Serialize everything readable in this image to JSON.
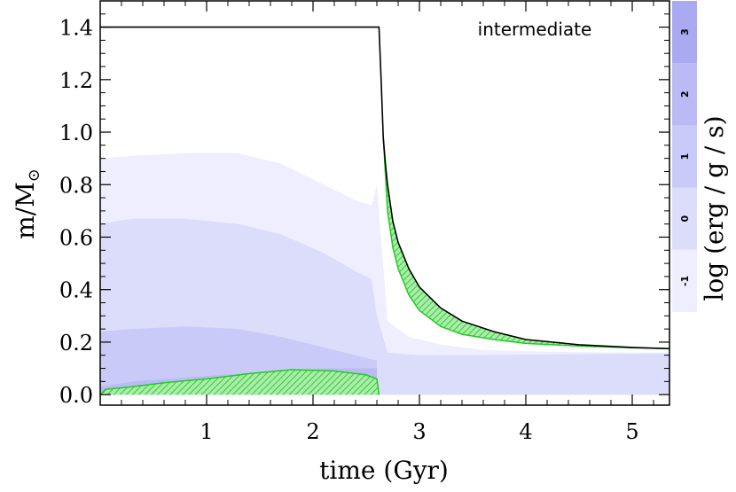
{
  "chart_data": {
    "type": "area",
    "annotation": "intermediate",
    "xlabel": "time  (Gyr)",
    "ylabel_main": "m/M",
    "ylabel_sub": "⊙",
    "xlim": [
      0.0,
      5.35
    ],
    "ylim": [
      -0.04,
      1.5
    ],
    "x_ticks": [
      1,
      2,
      3,
      4,
      5
    ],
    "x_tick_labels": [
      "1",
      "2",
      "3",
      "4",
      "5"
    ],
    "y_ticks": [
      0.0,
      0.2,
      0.4,
      0.6,
      0.8,
      1.0,
      1.2,
      1.4
    ],
    "y_tick_labels": [
      "0.0",
      "0.2",
      "0.4",
      "0.6",
      "0.8",
      "1.0",
      "1.2",
      "1.4"
    ],
    "colorbar": {
      "title": "log  (erg / g / s)",
      "levels": [
        "-1",
        "0",
        "1",
        "2",
        "3"
      ],
      "colors": [
        "#eeeeff",
        "#dcdcfb",
        "#cacaf8",
        "#babaf5",
        "#aaaaf2"
      ]
    },
    "series": [
      {
        "kind": "total_mass",
        "color": "#000000",
        "x": [
          0.0,
          2.62,
          2.64,
          2.66,
          2.68,
          2.7,
          2.75,
          2.8,
          2.9,
          3.0,
          3.2,
          3.4,
          3.7,
          4.0,
          4.5,
          5.0,
          5.35
        ],
        "y": [
          1.4,
          1.4,
          1.2,
          0.98,
          0.88,
          0.8,
          0.66,
          0.58,
          0.48,
          0.41,
          0.33,
          0.28,
          0.24,
          0.21,
          0.19,
          0.18,
          0.175
        ]
      },
      {
        "kind": "convective_envelope_base",
        "color": "#22cc22",
        "x": [
          2.66,
          2.7,
          2.75,
          2.8,
          2.9,
          3.0,
          3.2,
          3.4,
          3.7,
          4.0,
          4.5,
          5.0,
          5.35
        ],
        "y": [
          0.98,
          0.7,
          0.56,
          0.48,
          0.38,
          0.32,
          0.26,
          0.23,
          0.21,
          0.195,
          0.185,
          0.178,
          0.175
        ]
      },
      {
        "kind": "convective_core_top",
        "color": "#22cc22",
        "x": [
          0.0,
          0.05,
          0.3,
          0.6,
          1.0,
          1.4,
          1.8,
          2.2,
          2.5,
          2.6,
          2.62
        ],
        "y": [
          0.0,
          0.02,
          0.03,
          0.045,
          0.06,
          0.08,
          0.095,
          0.09,
          0.075,
          0.06,
          0.0
        ]
      },
      {
        "kind": "burning_level_-1",
        "color": "#eeeeff",
        "x": [
          0.0,
          0.3,
          0.8,
          1.3,
          1.7,
          2.1,
          2.4,
          2.55,
          2.6,
          2.7,
          2.9,
          3.2,
          3.6,
          4.0,
          4.5,
          5.0,
          5.35
        ],
        "y": [
          0.9,
          0.91,
          0.92,
          0.92,
          0.88,
          0.8,
          0.74,
          0.72,
          0.8,
          0.28,
          0.22,
          0.19,
          0.17,
          0.165,
          0.162,
          0.16,
          0.16
        ]
      },
      {
        "kind": "burning_level_0",
        "color": "#dcdcfb",
        "x": [
          0.0,
          0.3,
          0.8,
          1.3,
          1.7,
          2.1,
          2.4,
          2.55,
          2.6,
          2.7,
          3.0,
          3.5,
          4.0,
          4.5,
          5.0,
          5.35
        ],
        "y": [
          0.65,
          0.67,
          0.67,
          0.65,
          0.61,
          0.54,
          0.47,
          0.44,
          0.3,
          0.16,
          0.15,
          0.15,
          0.152,
          0.154,
          0.156,
          0.157
        ]
      },
      {
        "kind": "burning_level_1",
        "color": "#cacaf8",
        "x": [
          0.0,
          0.3,
          0.8,
          1.3,
          1.7,
          2.1,
          2.4,
          2.6
        ],
        "y": [
          0.24,
          0.25,
          0.26,
          0.25,
          0.22,
          0.18,
          0.15,
          0.13
        ]
      },
      {
        "kind": "burning_level_2",
        "color": "#babaf5",
        "x": [
          0.0,
          0.3,
          0.8,
          1.3,
          1.7,
          2.1,
          2.4,
          2.6
        ],
        "y": [
          0.03,
          0.05,
          0.065,
          0.08,
          0.095,
          0.1,
          0.1,
          0.1
        ]
      }
    ]
  }
}
